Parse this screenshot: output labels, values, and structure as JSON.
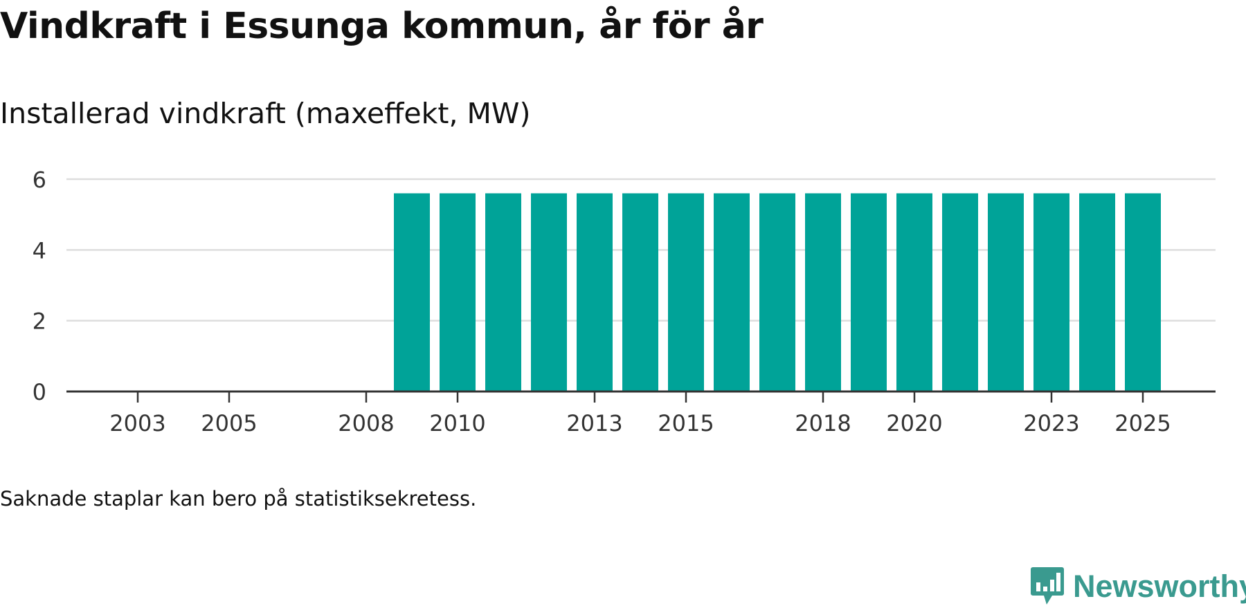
{
  "title": "Vindkraft i Essunga kommun, år för år",
  "subtitle": "Installerad vindkraft (maxeffekt, MW)",
  "note": "Saknade staplar kan bero på statistiksekretess.",
  "brand": {
    "name": "Newsworthy",
    "icon": "newsworthy-logo-icon",
    "color": "#3a9a8f"
  },
  "colors": {
    "bar": "#00a398",
    "grid": "#dddddd",
    "axis": "#333333"
  },
  "chart_data": {
    "type": "bar",
    "title": "Vindkraft i Essunga kommun, år för år",
    "ylabel": "Installerad vindkraft (maxeffekt, MW)",
    "xlabel": "",
    "categories": [
      "2002",
      "2003",
      "2004",
      "2005",
      "2006",
      "2007",
      "2008",
      "2009",
      "2010",
      "2011",
      "2012",
      "2013",
      "2014",
      "2015",
      "2016",
      "2017",
      "2018",
      "2019",
      "2020",
      "2021",
      "2022",
      "2023",
      "2024",
      "2025"
    ],
    "values": [
      0,
      0,
      0,
      0,
      0,
      0,
      0,
      5.6,
      5.6,
      5.6,
      5.6,
      5.6,
      5.6,
      5.6,
      5.6,
      5.6,
      5.6,
      5.6,
      5.6,
      5.6,
      5.6,
      5.6,
      5.6,
      5.6
    ],
    "x_tick_labels": [
      "2003",
      "2005",
      "2008",
      "2010",
      "2013",
      "2015",
      "2018",
      "2020",
      "2023",
      "2025"
    ],
    "y_ticks": [
      0,
      2,
      4,
      6
    ],
    "ylim": [
      0,
      6
    ],
    "grid": true,
    "legend": "none"
  }
}
